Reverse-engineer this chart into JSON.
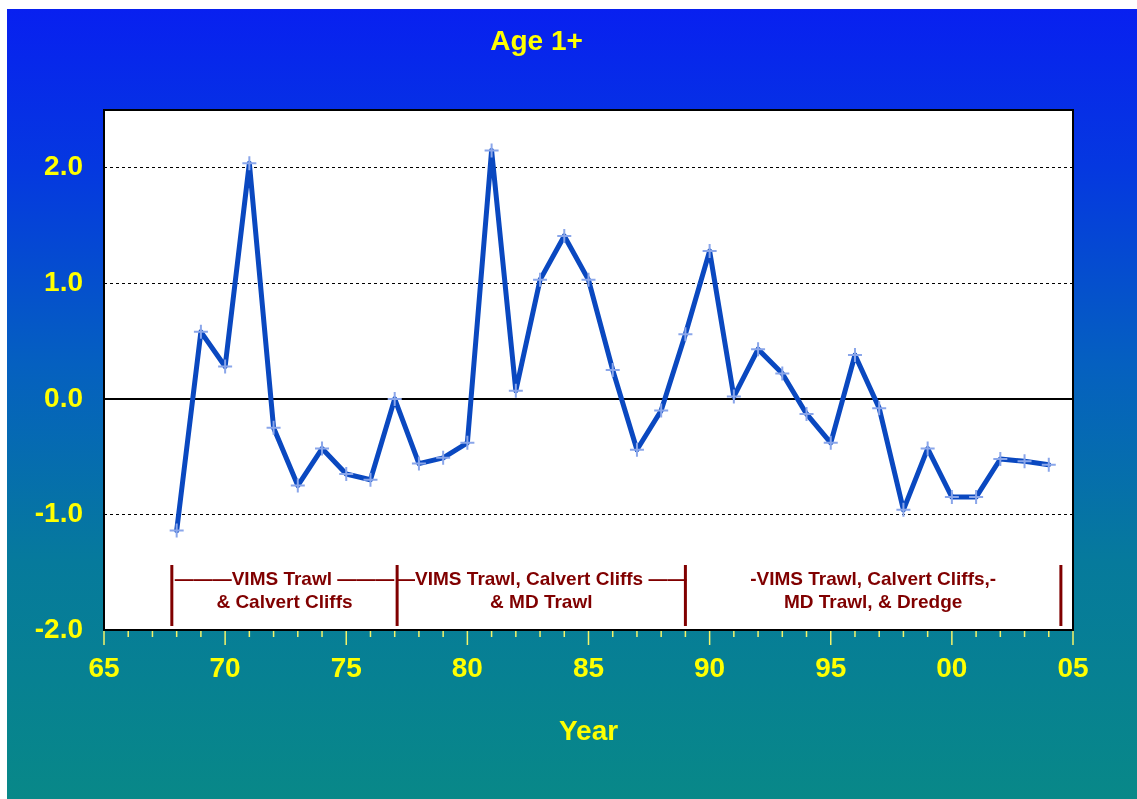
{
  "chart_data": {
    "type": "line",
    "title": "Age 1+",
    "xlabel": "Year",
    "x": [
      1968,
      1969,
      1970,
      1971,
      1972,
      1973,
      1974,
      1975,
      1976,
      1977,
      1978,
      1979,
      1980,
      1981,
      1982,
      1983,
      1984,
      1985,
      1986,
      1987,
      1988,
      1989,
      1990,
      1991,
      1992,
      1993,
      1994,
      1995,
      1996,
      1997,
      1998,
      1999,
      2000,
      2001,
      2002,
      2003,
      2004
    ],
    "series": [
      {
        "color": "#0a48c0",
        "values": [
          -1.14,
          0.58,
          0.28,
          2.04,
          -0.25,
          -0.75,
          -0.43,
          -0.65,
          -0.7,
          0.0,
          -0.56,
          -0.51,
          -0.38,
          2.15,
          0.07,
          1.03,
          1.41,
          1.03,
          0.25,
          -0.44,
          -0.1,
          0.56,
          1.28,
          0.02,
          0.43,
          0.22,
          -0.13,
          -0.38,
          0.38,
          -0.08,
          -0.96,
          -0.43,
          -0.85,
          -0.85,
          -0.52,
          -0.54,
          -0.57
        ]
      }
    ],
    "xlim": [
      1965,
      2005
    ],
    "xticks": [
      {
        "value": 1965,
        "label": "65"
      },
      {
        "value": 1966,
        "label": null
      },
      {
        "value": 1967,
        "label": null
      },
      {
        "value": 1968,
        "label": null
      },
      {
        "value": 1969,
        "label": null
      },
      {
        "value": 1970,
        "label": "70"
      },
      {
        "value": 1971,
        "label": null
      },
      {
        "value": 1972,
        "label": null
      },
      {
        "value": 1973,
        "label": null
      },
      {
        "value": 1974,
        "label": null
      },
      {
        "value": 1975,
        "label": "75"
      },
      {
        "value": 1976,
        "label": null
      },
      {
        "value": 1977,
        "label": null
      },
      {
        "value": 1978,
        "label": null
      },
      {
        "value": 1979,
        "label": null
      },
      {
        "value": 1980,
        "label": "80"
      },
      {
        "value": 1981,
        "label": null
      },
      {
        "value": 1982,
        "label": null
      },
      {
        "value": 1983,
        "label": null
      },
      {
        "value": 1984,
        "label": null
      },
      {
        "value": 1985,
        "label": "85"
      },
      {
        "value": 1986,
        "label": null
      },
      {
        "value": 1987,
        "label": null
      },
      {
        "value": 1988,
        "label": null
      },
      {
        "value": 1989,
        "label": null
      },
      {
        "value": 1990,
        "label": "90"
      },
      {
        "value": 1991,
        "label": null
      },
      {
        "value": 1992,
        "label": null
      },
      {
        "value": 1993,
        "label": null
      },
      {
        "value": 1994,
        "label": null
      },
      {
        "value": 1995,
        "label": "95"
      },
      {
        "value": 1996,
        "label": null
      },
      {
        "value": 1997,
        "label": null
      },
      {
        "value": 1998,
        "label": null
      },
      {
        "value": 1999,
        "label": null
      },
      {
        "value": 2000,
        "label": "00"
      },
      {
        "value": 2001,
        "label": null
      },
      {
        "value": 2002,
        "label": null
      },
      {
        "value": 2003,
        "label": null
      },
      {
        "value": 2004,
        "label": null
      },
      {
        "value": 2005,
        "label": "05"
      }
    ],
    "ylim": [
      -2,
      2.5
    ],
    "yticks": [
      {
        "value": -2,
        "label": "-2.0"
      },
      {
        "value": -1,
        "label": "-1.0"
      },
      {
        "value": 0,
        "label": "0.0"
      },
      {
        "value": 1,
        "label": "1.0"
      },
      {
        "value": 2,
        "label": "2.0"
      }
    ],
    "grid": "y",
    "marker": "cross",
    "line_style": "solid",
    "ref_lines": [
      {
        "axis": "y",
        "value": 0,
        "color": "#000000"
      },
      {
        "axis": "x",
        "value": 1967.8,
        "color": "#800000"
      },
      {
        "axis": "x",
        "value": 1977.1,
        "color": "#800000"
      },
      {
        "axis": "x",
        "value": 1989.0,
        "color": "#800000"
      },
      {
        "axis": "x",
        "value": 2004.5,
        "color": "#800000"
      }
    ],
    "annotations": [
      "———VIMS Trawl ———\n& Calvert Cliffs",
      "—VIMS Trawl, Calvert Cliffs ——\n& MD Trawl",
      "-VIMS Trawl, Calvert Cliffs,-\nMD Trawl, & Dredge"
    ]
  }
}
